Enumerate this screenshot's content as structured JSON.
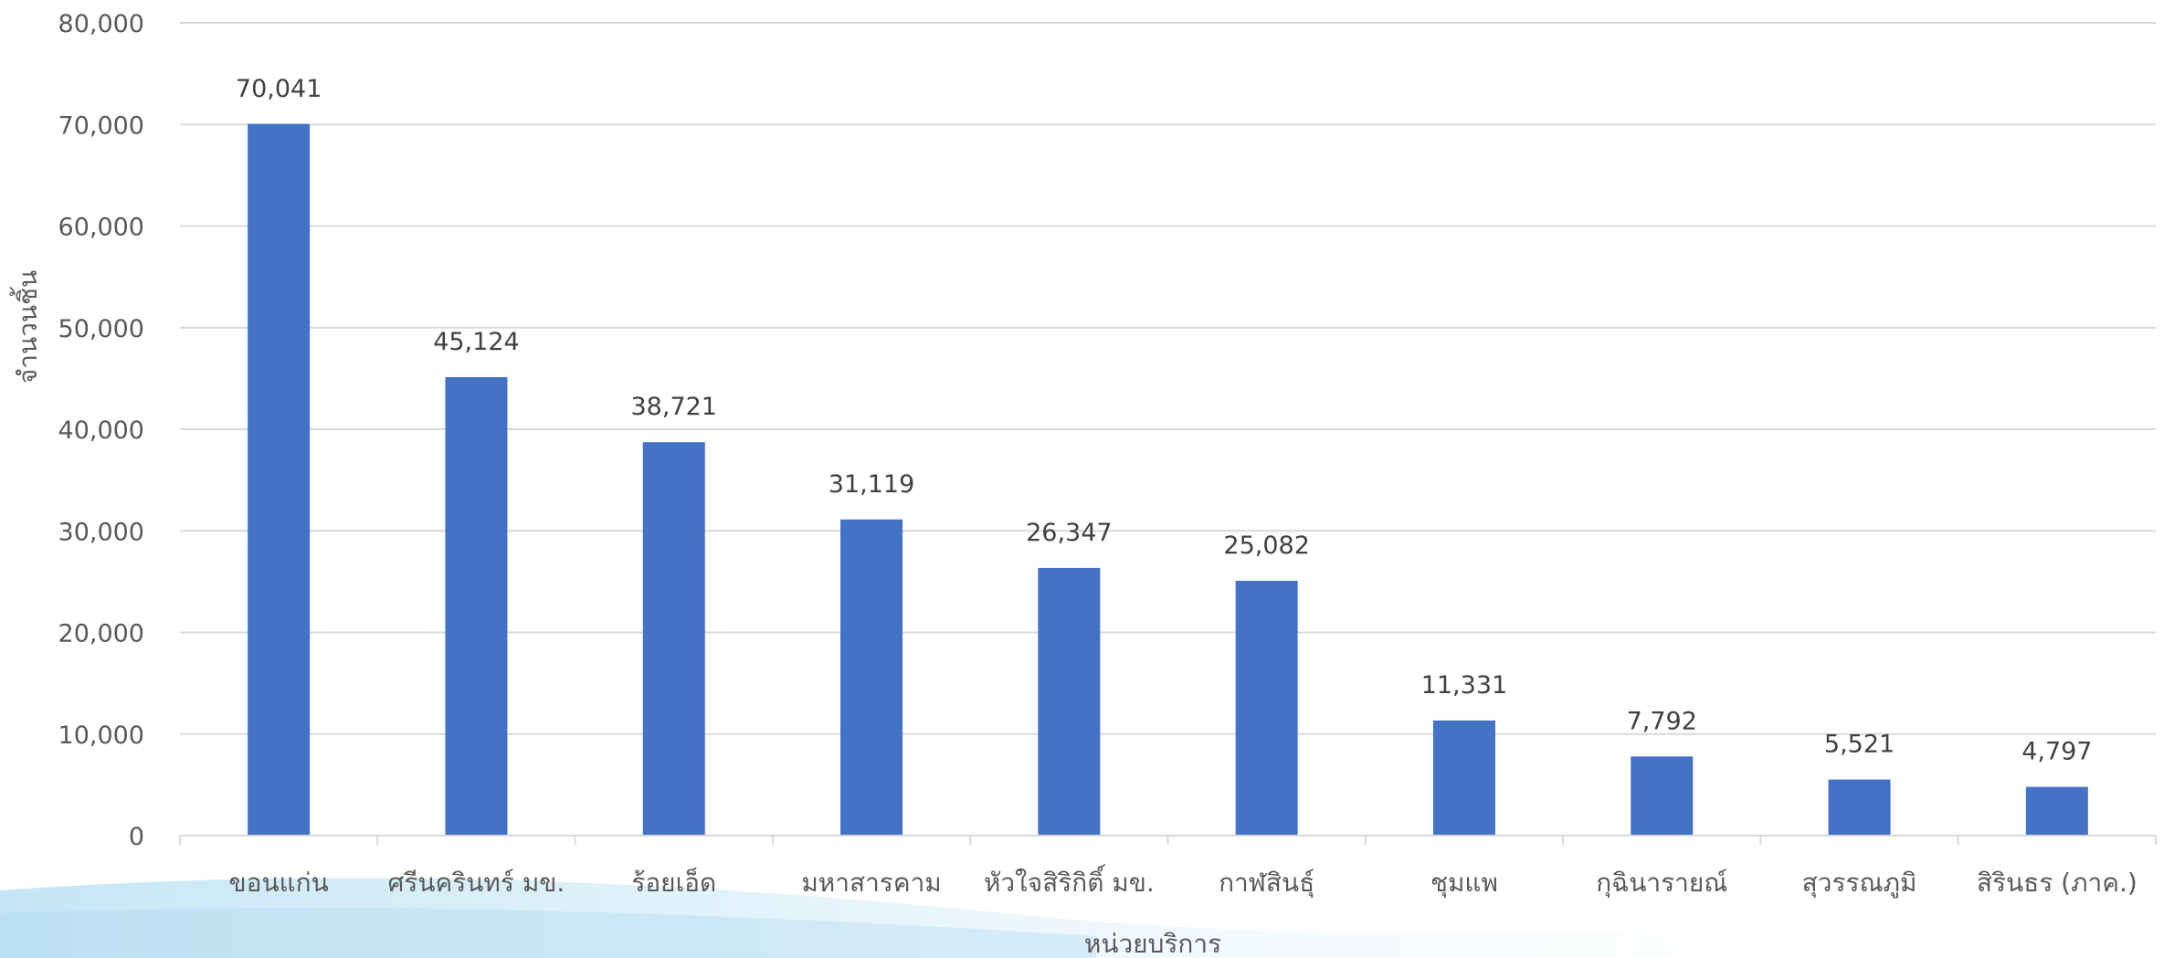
{
  "chart_data": {
    "type": "bar",
    "title": "",
    "xlabel": "หน่วยบริการ",
    "ylabel": "จำนวนชิ้น",
    "ylim": [
      0,
      80000
    ],
    "yticks": [
      0,
      10000,
      20000,
      30000,
      40000,
      50000,
      60000,
      70000,
      80000
    ],
    "ytick_labels": [
      "0",
      "10,000",
      "20,000",
      "30,000",
      "40,000",
      "50,000",
      "60,000",
      "70,000",
      "80,000"
    ],
    "grid": true,
    "bar_color": "#4472C4",
    "categories": [
      "ขอนแก่น",
      "ศรีนครินทร์ มข.",
      "ร้อยเอ็ด",
      "มหาสารคาม",
      "หัวใจสิริกิติ์ มข.",
      "กาฬสินธุ์",
      "ชุมแพ",
      "กุฉินารายณ์",
      "สุวรรณภูมิ",
      "สิรินธร (ภาค.)"
    ],
    "values": [
      70041,
      45124,
      38721,
      31119,
      26347,
      25082,
      11331,
      7792,
      5521,
      4797
    ],
    "data_labels": [
      "70,041",
      "45,124",
      "38,721",
      "31,119",
      "26,347",
      "25,082",
      "11,331",
      "7,792",
      "5,521",
      "4,797"
    ]
  }
}
